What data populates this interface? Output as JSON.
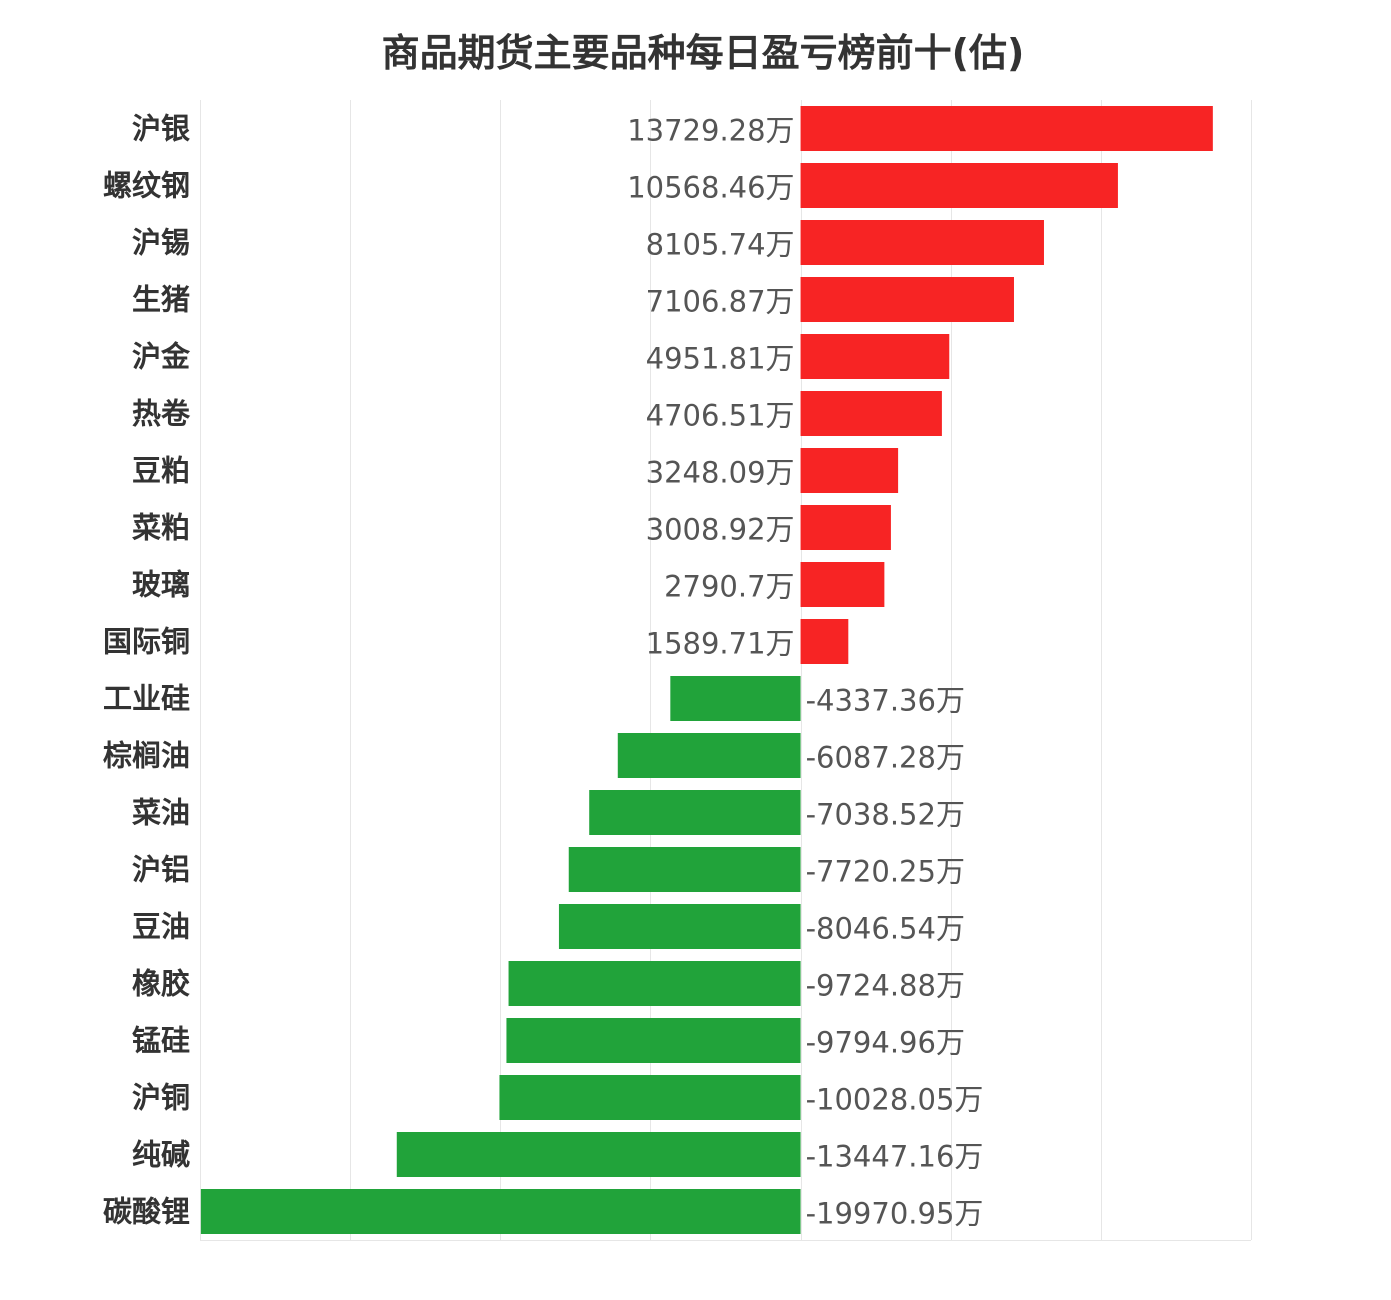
{
  "chart_data": {
    "type": "bar",
    "orientation": "horizontal",
    "title": "商品期货主要品种每日盈亏榜前十(估)",
    "unit": "万",
    "categories": [
      "沪银",
      "螺纹钢",
      "沪锡",
      "生猪",
      "沪金",
      "热卷",
      "豆粕",
      "菜粕",
      "玻璃",
      "国际铜",
      "工业硅",
      "棕榈油",
      "菜油",
      "沪铝",
      "豆油",
      "橡胶",
      "锰硅",
      "沪铜",
      "纯碱",
      "碳酸锂"
    ],
    "values": [
      13729.28,
      10568.46,
      8105.74,
      7106.87,
      4951.81,
      4706.51,
      3248.09,
      3008.92,
      2790.7,
      1589.71,
      -4337.36,
      -6087.28,
      -7038.52,
      -7720.25,
      -8046.54,
      -9724.88,
      -9794.96,
      -10028.05,
      -13447.16,
      -19970.95
    ],
    "value_labels": [
      "13729.28万",
      "10568.46万",
      "8105.74万",
      "7106.87万",
      "4951.81万",
      "4706.51万",
      "3248.09万",
      "3008.92万",
      "2790.7万",
      "1589.71万",
      "-4337.36万",
      "-6087.28万",
      "-7038.52万",
      "-7720.25万",
      "-8046.54万",
      "-9724.88万",
      "-9794.96万",
      "-10028.05万",
      "-13447.16万",
      "-19970.95万"
    ],
    "xlim": [
      -20000,
      15000
    ],
    "grid": true,
    "legend": "none",
    "colors": {
      "positive": "#f72424",
      "negative": "#21a33a"
    }
  }
}
